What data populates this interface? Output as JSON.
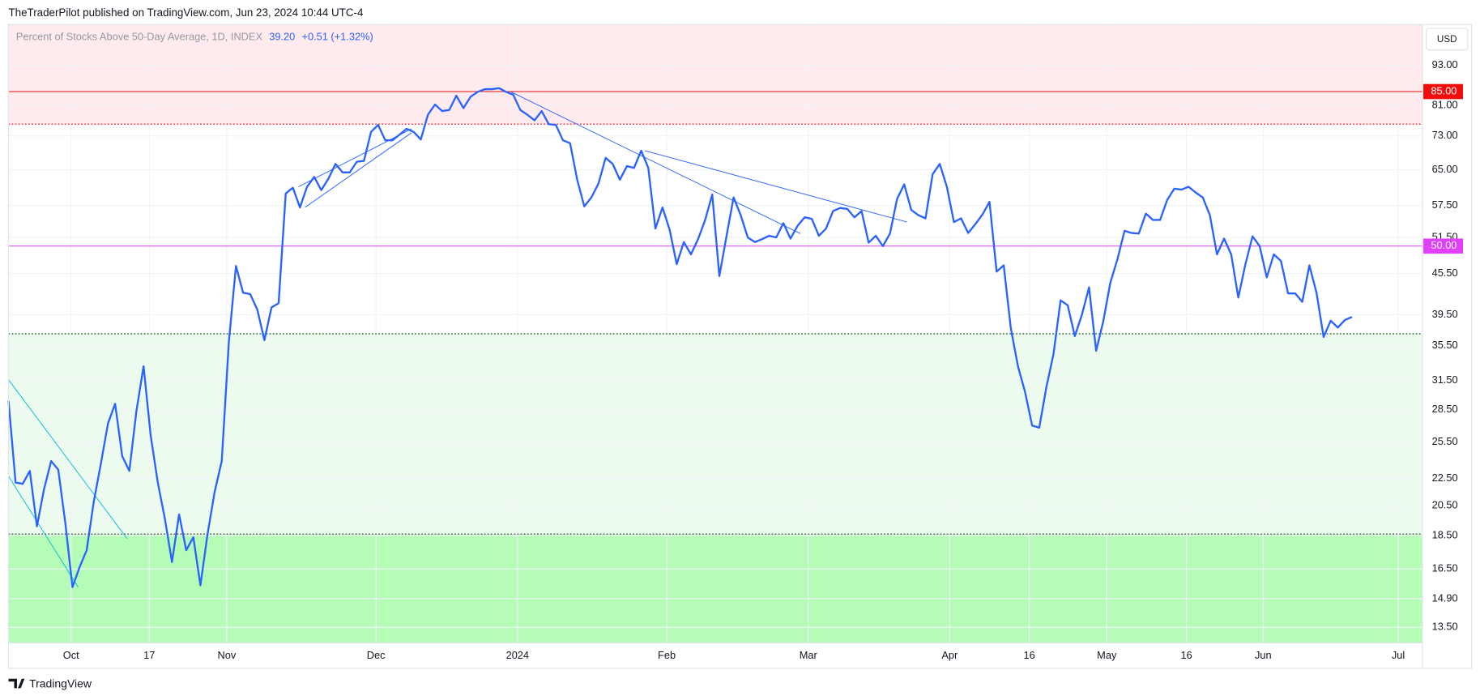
{
  "header": {
    "published": "TheTraderPilot published on TradingView.com, Jun 23, 2024 10:44 UTC-4"
  },
  "footer": {
    "brand": "TradingView"
  },
  "currency": "USD",
  "chart_data": {
    "type": "line",
    "legend": {
      "name": "Percent of Stocks Above 50-Day Average, 1D, INDEX",
      "last": "39.20",
      "change": "+0.51",
      "change_pct": "(+1.32%)"
    },
    "log_scale": true,
    "grid": true,
    "series": [
      {
        "name": "Percent of Stocks Above 50-Day Average, 1D, INDEX",
        "color": "#2962ff",
        "values": [
          29.4,
          22.2,
          22.1,
          23.1,
          19.1,
          21.7,
          23.9,
          23.2,
          19.3,
          15.5,
          16.6,
          17.6,
          20.8,
          23.7,
          27.2,
          29.1,
          24.3,
          23.1,
          28.4,
          33.1,
          26.1,
          22.2,
          19.6,
          16.9,
          19.9,
          17.6,
          18.4,
          15.6,
          18.6,
          21.5,
          23.9,
          36.0,
          46.7,
          42.6,
          42.4,
          40.2,
          36.2,
          40.5,
          41.1,
          59.9,
          61.1,
          57.1,
          61.3,
          63.4,
          60.6,
          63.0,
          66.3,
          64.4,
          64.4,
          66.8,
          67.0,
          74.0,
          75.8,
          71.9,
          71.9,
          73.3,
          74.8,
          74.0,
          72.1,
          78.5,
          81.3,
          79.5,
          79.8,
          83.8,
          80.3,
          83.5,
          84.9,
          85.7,
          85.7,
          86.0,
          84.9,
          84.1,
          79.8,
          78.5,
          77.0,
          79.5,
          76.0,
          75.8,
          71.9,
          71.2,
          62.8,
          57.3,
          59.1,
          62.0,
          67.7,
          66.3,
          62.8,
          65.8,
          65.4,
          69.4,
          65.4,
          53.1,
          57.1,
          52.9,
          47.0,
          50.7,
          48.6,
          51.2,
          54.7,
          59.7,
          45.1,
          51.7,
          59.1,
          55.6,
          51.5,
          50.7,
          51.2,
          51.8,
          51.5,
          54.1,
          51.3,
          53.6,
          55.2,
          54.9,
          51.8,
          53.1,
          56.4,
          57.0,
          56.8,
          55.2,
          56.4,
          50.6,
          51.8,
          50.0,
          52.2,
          58.8,
          61.8,
          56.6,
          55.6,
          55.0,
          64.0,
          66.3,
          61.3,
          54.3,
          55.0,
          52.3,
          53.9,
          55.7,
          58.2,
          45.8,
          46.8,
          37.7,
          33.1,
          30.3,
          27.0,
          26.8,
          30.8,
          34.5,
          41.5,
          40.8,
          36.7,
          39.5,
          43.4,
          34.9,
          38.6,
          44.1,
          47.8,
          52.7,
          52.3,
          52.2,
          55.9,
          54.7,
          54.7,
          58.6,
          60.9,
          60.7,
          61.3,
          60.1,
          59.1,
          55.6,
          48.6,
          51.3,
          48.6,
          41.9,
          47.0,
          51.7,
          50.0,
          44.9,
          48.6,
          47.5,
          42.5,
          42.5,
          41.3,
          46.8,
          42.6,
          36.6,
          38.7,
          37.8,
          38.8,
          39.2
        ]
      }
    ],
    "xlim": [
      0,
      198.9
    ],
    "xticks": [
      {
        "value": 8.8,
        "label": "Oct"
      },
      {
        "value": 19.8,
        "label": "17"
      },
      {
        "value": 30.7,
        "label": "Nov"
      },
      {
        "value": 51.7,
        "label": "Dec"
      },
      {
        "value": 71.6,
        "label": "2024"
      },
      {
        "value": 92.6,
        "label": "Feb"
      },
      {
        "value": 112.5,
        "label": "Mar"
      },
      {
        "value": 132.4,
        "label": "Apr"
      },
      {
        "value": 143.6,
        "label": "16"
      },
      {
        "value": 154.5,
        "label": "May"
      },
      {
        "value": 165.7,
        "label": "16"
      },
      {
        "value": 176.5,
        "label": "Jun"
      },
      {
        "value": 195.5,
        "label": "Jul"
      }
    ],
    "ylim": [
      12.8,
      107
    ],
    "yticks": [
      {
        "value": 93,
        "label": "93.00"
      },
      {
        "value": 81,
        "label": "81.00"
      },
      {
        "value": 73,
        "label": "73.00"
      },
      {
        "value": 65,
        "label": "65.00"
      },
      {
        "value": 57.5,
        "label": "57.50"
      },
      {
        "value": 51.5,
        "label": "51.50"
      },
      {
        "value": 45.5,
        "label": "45.50"
      },
      {
        "value": 39.5,
        "label": "39.50"
      },
      {
        "value": 35.5,
        "label": "35.50"
      },
      {
        "value": 31.5,
        "label": "31.50"
      },
      {
        "value": 28.5,
        "label": "28.50"
      },
      {
        "value": 25.5,
        "label": "25.50"
      },
      {
        "value": 22.5,
        "label": "22.50"
      },
      {
        "value": 20.5,
        "label": "20.50"
      },
      {
        "value": 18.5,
        "label": "18.50"
      },
      {
        "value": 16.5,
        "label": "16.50"
      },
      {
        "value": 14.9,
        "label": "14.90"
      },
      {
        "value": 13.5,
        "label": "13.50"
      }
    ],
    "zones": [
      {
        "low": 76,
        "high": 107,
        "color": "#ffebee"
      },
      {
        "low": 18.6,
        "high": 37,
        "color": "#edfbee"
      },
      {
        "low": 12.8,
        "high": 18.6,
        "color": "#b5fcb7"
      }
    ],
    "dotted_lines": [
      {
        "value": 76,
        "color": "#f23645"
      },
      {
        "value": 37,
        "color": "#1b5e20"
      },
      {
        "value": 18.6,
        "color": "#555555"
      }
    ],
    "levels": [
      {
        "value": 85,
        "label": "85.00",
        "color": "#f20d0d"
      },
      {
        "value": 50,
        "label": "50.00",
        "color": "#e040fb"
      }
    ],
    "trendlines": [
      {
        "x": [
          0,
          16.7
        ],
        "y": [
          31.6,
          18.3
        ],
        "color": "#00bcd4"
      },
      {
        "x": [
          0,
          9.8
        ],
        "y": [
          22.7,
          15.5
        ],
        "color": "#00bcd4"
      },
      {
        "x": [
          40.8,
          56.7
        ],
        "y": [
          61.3,
          74.8
        ],
        "color": "#2962ff"
      },
      {
        "x": [
          41.7,
          56.7
        ],
        "y": [
          57.1,
          73.8
        ],
        "color": "#2962ff"
      },
      {
        "x": [
          70.7,
          111.4
        ],
        "y": [
          84.9,
          52.2
        ],
        "color": "#2962ff"
      },
      {
        "x": [
          89.5,
          126.4
        ],
        "y": [
          69.4,
          54.3
        ],
        "color": "#2962ff"
      }
    ]
  }
}
